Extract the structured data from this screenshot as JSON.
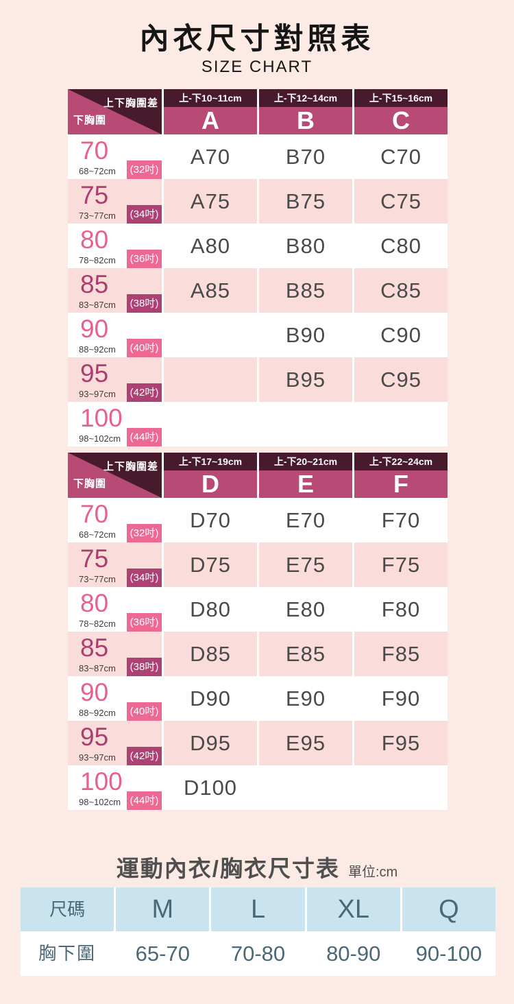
{
  "header": {
    "title": "內衣尺寸對照表",
    "subtitle": "SIZE CHART"
  },
  "colors": {
    "page_bg": "#fcebe4",
    "table_header_pink": "#b84b75",
    "table_header_dark": "#481b2c",
    "row_pink_bg": "#fadcdb",
    "accent_pink": "#e9608b",
    "badge_pink": "#eb6992",
    "accent_magenta": "#a93e6f",
    "badge_magenta": "#ad4173",
    "cell_text": "#4a4a4a",
    "sports_header_blue": "#c9e4ee",
    "sports_text": "#4a6878"
  },
  "chart_data": [
    {
      "type": "table",
      "corner": {
        "diff_label": "上下胸圍差",
        "under_label": "下胸圍"
      },
      "columns": [
        {
          "range": "上-下10~11cm",
          "cup": "A"
        },
        {
          "range": "上-下12~14cm",
          "cup": "B"
        },
        {
          "range": "上-下15~16cm",
          "cup": "C"
        }
      ],
      "rows": [
        {
          "band": "70",
          "range_cm": "68~72cm",
          "inch_badge": "(32吋)",
          "cells": [
            "A70",
            "B70",
            "C70"
          ]
        },
        {
          "band": "75",
          "range_cm": "73~77cm",
          "inch_badge": "(34吋)",
          "cells": [
            "A75",
            "B75",
            "C75"
          ]
        },
        {
          "band": "80",
          "range_cm": "78~82cm",
          "inch_badge": "(36吋)",
          "cells": [
            "A80",
            "B80",
            "C80"
          ]
        },
        {
          "band": "85",
          "range_cm": "83~87cm",
          "inch_badge": "(38吋)",
          "cells": [
            "A85",
            "B85",
            "C85"
          ]
        },
        {
          "band": "90",
          "range_cm": "88~92cm",
          "inch_badge": "(40吋)",
          "cells": [
            "",
            "B90",
            "C90"
          ]
        },
        {
          "band": "95",
          "range_cm": "93~97cm",
          "inch_badge": "(42吋)",
          "cells": [
            "",
            "B95",
            "C95"
          ]
        },
        {
          "band": "100",
          "range_cm": "98~102cm",
          "inch_badge": "(44吋)",
          "cells": [
            "",
            "",
            ""
          ]
        }
      ]
    },
    {
      "type": "table",
      "corner": {
        "diff_label": "上下胸圍差",
        "under_label": "下胸圍"
      },
      "columns": [
        {
          "range": "上-下17~19cm",
          "cup": "D"
        },
        {
          "range": "上-下20~21cm",
          "cup": "E"
        },
        {
          "range": "上-下22~24cm",
          "cup": "F"
        }
      ],
      "rows": [
        {
          "band": "70",
          "range_cm": "68~72cm",
          "inch_badge": "(32吋)",
          "cells": [
            "D70",
            "E70",
            "F70"
          ]
        },
        {
          "band": "75",
          "range_cm": "73~77cm",
          "inch_badge": "(34吋)",
          "cells": [
            "D75",
            "E75",
            "F75"
          ]
        },
        {
          "band": "80",
          "range_cm": "78~82cm",
          "inch_badge": "(36吋)",
          "cells": [
            "D80",
            "E80",
            "F80"
          ]
        },
        {
          "band": "85",
          "range_cm": "83~87cm",
          "inch_badge": "(38吋)",
          "cells": [
            "D85",
            "E85",
            "F85"
          ]
        },
        {
          "band": "90",
          "range_cm": "88~92cm",
          "inch_badge": "(40吋)",
          "cells": [
            "D90",
            "E90",
            "F90"
          ]
        },
        {
          "band": "95",
          "range_cm": "93~97cm",
          "inch_badge": "(42吋)",
          "cells": [
            "D95",
            "E95",
            "F95"
          ]
        },
        {
          "band": "100",
          "range_cm": "98~102cm",
          "inch_badge": "(44吋)",
          "cells": [
            "D100",
            "",
            ""
          ]
        }
      ]
    },
    {
      "type": "table",
      "title": "運動內衣/胸衣尺寸表",
      "unit_label": "單位:cm",
      "headers": [
        "尺碼",
        "M",
        "L",
        "XL",
        "Q"
      ],
      "row": [
        "胸下圍",
        "65-70",
        "70-80",
        "80-90",
        "90-100"
      ]
    }
  ]
}
